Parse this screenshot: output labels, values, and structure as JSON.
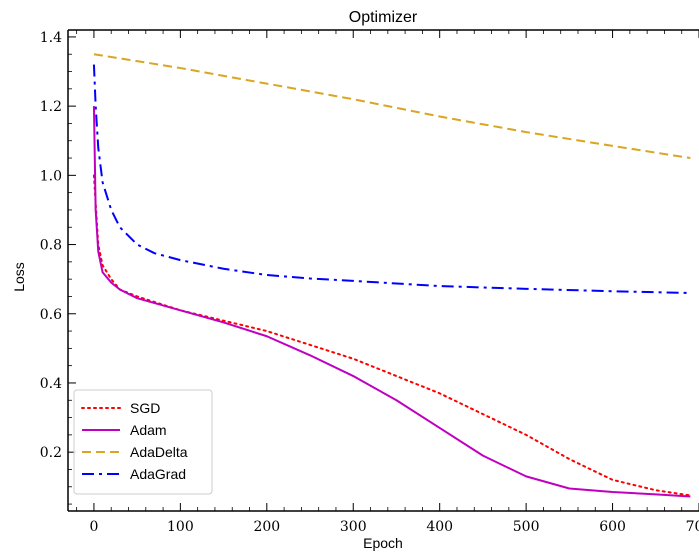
{
  "chart_data": {
    "type": "line",
    "title": "Optimizer",
    "xlabel": "Epoch",
    "ylabel": "Loss",
    "xlim": [
      -30,
      700
    ],
    "ylim": [
      0.03,
      1.42
    ],
    "xticks": [
      0,
      100,
      200,
      300,
      400,
      500,
      600,
      700
    ],
    "yticks": [
      0.2,
      0.4,
      0.6,
      0.8,
      1.0,
      1.2,
      1.4
    ],
    "xtick_labels": [
      "0",
      "100",
      "200",
      "300",
      "400",
      "500",
      "600",
      "700"
    ],
    "ytick_labels": [
      "0.2",
      "0.4",
      "0.6",
      "0.8",
      "1.0",
      "1.2",
      "1.4"
    ],
    "grid": false,
    "legend_position": "bottom-left",
    "series": [
      {
        "name": "SGD",
        "color": "#ff0000",
        "style": "dotted",
        "x": [
          0,
          5,
          10,
          20,
          30,
          50,
          100,
          150,
          200,
          250,
          300,
          350,
          400,
          450,
          500,
          550,
          600,
          650,
          690
        ],
        "y": [
          1.0,
          0.8,
          0.74,
          0.7,
          0.67,
          0.65,
          0.61,
          0.58,
          0.55,
          0.51,
          0.47,
          0.42,
          0.37,
          0.31,
          0.25,
          0.18,
          0.12,
          0.09,
          0.075
        ]
      },
      {
        "name": "Adam",
        "color": "#c000c0",
        "style": "solid",
        "x": [
          0,
          2,
          5,
          10,
          20,
          30,
          50,
          100,
          150,
          200,
          250,
          300,
          350,
          400,
          450,
          500,
          550,
          600,
          650,
          690
        ],
        "y": [
          1.2,
          0.9,
          0.78,
          0.72,
          0.69,
          0.67,
          0.645,
          0.61,
          0.575,
          0.535,
          0.48,
          0.42,
          0.35,
          0.27,
          0.19,
          0.13,
          0.095,
          0.085,
          0.078,
          0.072
        ]
      },
      {
        "name": "AdaDelta",
        "color": "#daa520",
        "style": "dashed",
        "x": [
          0,
          100,
          200,
          300,
          400,
          500,
          600,
          690
        ],
        "y": [
          1.35,
          1.31,
          1.265,
          1.22,
          1.17,
          1.125,
          1.085,
          1.05
        ]
      },
      {
        "name": "AdaGrad",
        "color": "#0000ff",
        "style": "dashdot",
        "x": [
          0,
          2,
          5,
          10,
          20,
          30,
          50,
          70,
          100,
          150,
          200,
          250,
          300,
          400,
          500,
          600,
          690
        ],
        "y": [
          1.32,
          1.2,
          1.08,
          0.98,
          0.9,
          0.85,
          0.8,
          0.775,
          0.755,
          0.73,
          0.712,
          0.702,
          0.695,
          0.68,
          0.672,
          0.665,
          0.66
        ]
      }
    ]
  }
}
